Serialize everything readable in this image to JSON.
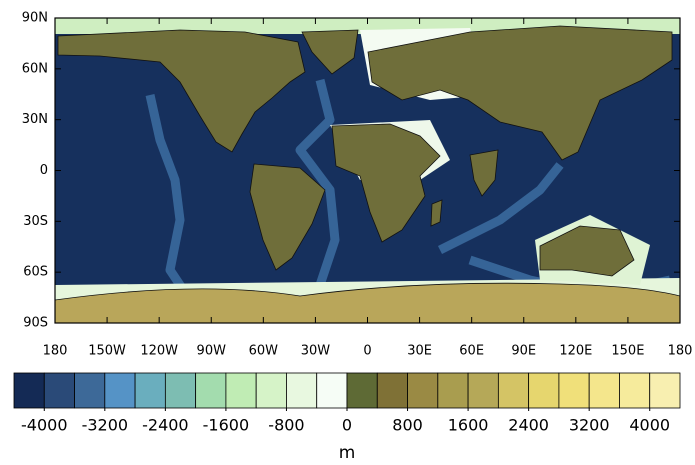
{
  "map": {
    "lon_ticks": [
      {
        "value": -180,
        "label": "180"
      },
      {
        "value": -150,
        "label": "150W"
      },
      {
        "value": -120,
        "label": "120W"
      },
      {
        "value": -90,
        "label": "90W"
      },
      {
        "value": -60,
        "label": "60W"
      },
      {
        "value": -30,
        "label": "30W"
      },
      {
        "value": 0,
        "label": "0"
      },
      {
        "value": 30,
        "label": "30E"
      },
      {
        "value": 60,
        "label": "60E"
      },
      {
        "value": 90,
        "label": "90E"
      },
      {
        "value": 120,
        "label": "120E"
      },
      {
        "value": 150,
        "label": "150E"
      },
      {
        "value": 180,
        "label": "180"
      }
    ],
    "lat_ticks": [
      {
        "value": 90,
        "label": "90N"
      },
      {
        "value": 60,
        "label": "60N"
      },
      {
        "value": 30,
        "label": "30N"
      },
      {
        "value": 0,
        "label": "0"
      },
      {
        "value": -30,
        "label": "30S"
      },
      {
        "value": -60,
        "label": "60S"
      },
      {
        "value": -90,
        "label": "90S"
      }
    ],
    "lonlim": [
      -180,
      180
    ],
    "latlim": [
      -90,
      90
    ]
  },
  "colorbar": {
    "unit": "m",
    "levels_lim": [
      -4000,
      4000
    ],
    "level_step": 400,
    "colors": [
      "#142a55",
      "#2a4a78",
      "#3d6998",
      "#5593c6",
      "#6aaebe",
      "#7dbdb2",
      "#a3dcae",
      "#c0ecb4",
      "#d6f3c8",
      "#e8f8e0",
      "#f6fdf6",
      "#5e6a35",
      "#7f7136",
      "#9a8a44",
      "#a99d4f",
      "#b5a858",
      "#d4c465",
      "#e6d66e",
      "#f0e07a",
      "#f4e68c",
      "#f6eb9c",
      "#f8efb0"
    ],
    "ticks": [
      -4000,
      -3200,
      -2400,
      -1600,
      -800,
      0,
      800,
      1600,
      2400,
      3200,
      4000
    ]
  }
}
